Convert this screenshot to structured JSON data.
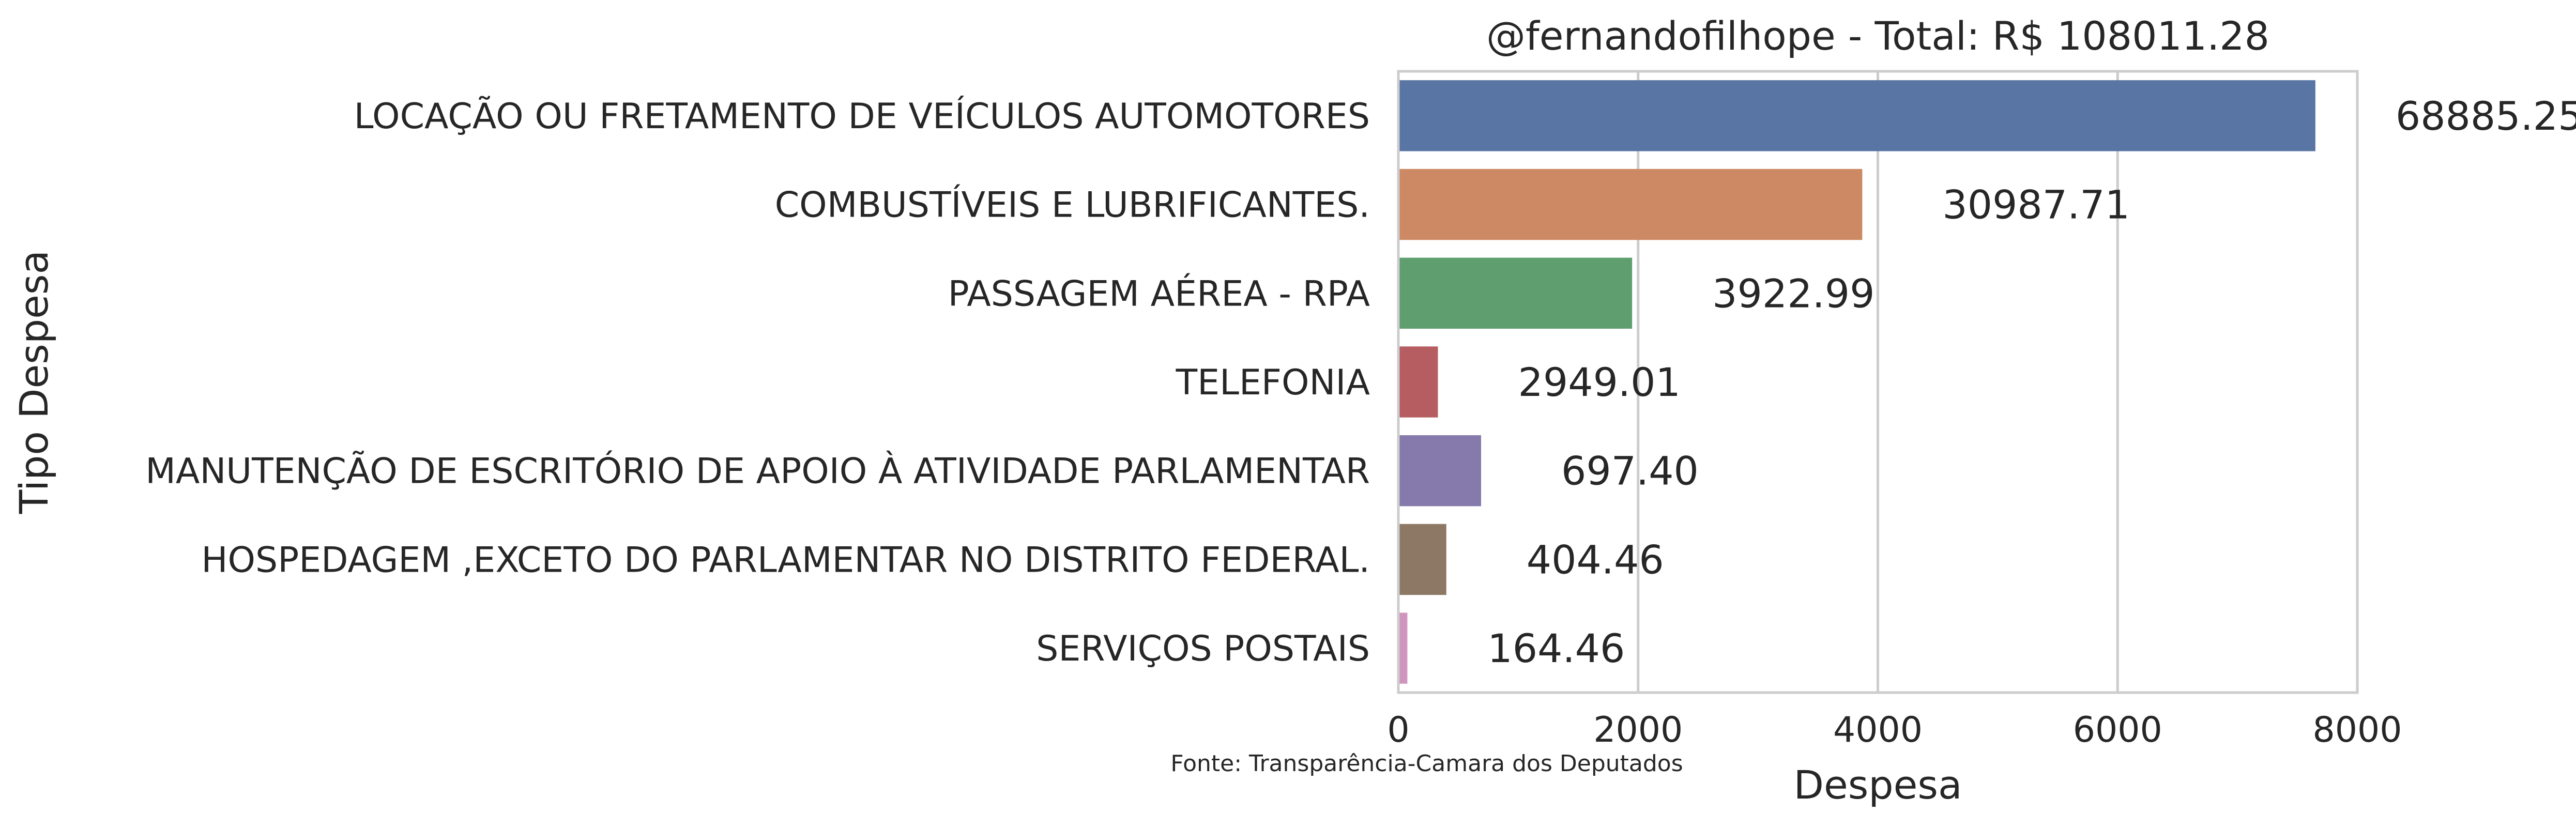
{
  "chart_data": {
    "type": "bar",
    "orientation": "horizontal",
    "title": "@fernandofilhope - Total: R$ 108011.28",
    "xlabel": "Despesa",
    "ylabel": "Tipo Despesa",
    "xlim": [
      0,
      8000
    ],
    "xticks": [
      "0",
      "2000",
      "4000",
      "6000",
      "8000"
    ],
    "grid": true,
    "categories": [
      "LOCAÇÃO OU FRETAMENTO DE VEÍCULOS AUTOMOTORES",
      "COMBUSTÍVEIS E LUBRIFICANTES.",
      "PASSAGEM AÉREA - RPA",
      "TELEFONIA",
      "MANUTENÇÃO DE ESCRITÓRIO DE APOIO À ATIVIDADE PARLAMENTAR",
      "HOSPEDAGEM ,EXCETO DO PARLAMENTAR NO DISTRITO FEDERAL.",
      "SERVIÇOS POSTAIS"
    ],
    "values": [
      7650,
      3870,
      1950,
      330,
      690,
      400,
      75
    ],
    "value_labels": [
      "68885.25",
      "30987.71",
      "3922.99",
      "2949.01",
      "697.40",
      "404.46",
      "164.46"
    ],
    "colors": [
      "#5875a4",
      "#cc8963",
      "#5f9e6e",
      "#b55d60",
      "#857aab",
      "#8d7866",
      "#d095bf"
    ],
    "source_note": "Fonte: Transparência-Camara dos Deputados"
  }
}
